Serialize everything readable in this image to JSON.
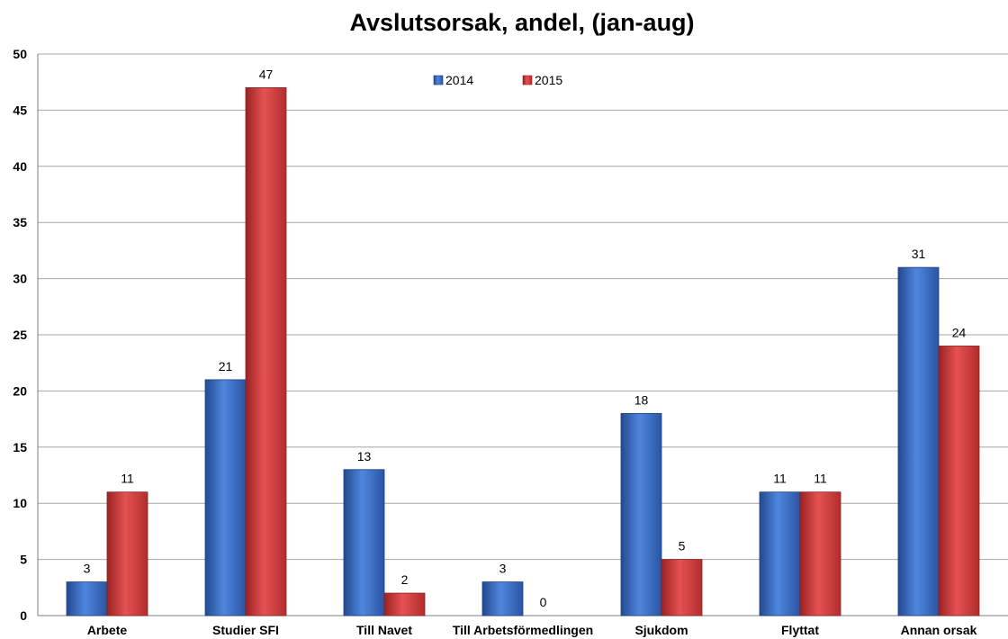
{
  "chart_data": {
    "type": "bar",
    "title": "Avslutsorsak, andel, (jan-aug)",
    "categories": [
      "Arbete",
      "Studier SFI",
      "Till Navet",
      "Till Arbetsförmedlingen",
      "Sjukdom",
      "Flyttat",
      "Annan orsak"
    ],
    "series": [
      {
        "name": "2014",
        "values": [
          3,
          21,
          13,
          3,
          18,
          11,
          31
        ]
      },
      {
        "name": "2015",
        "values": [
          11,
          47,
          2,
          0,
          5,
          11,
          24
        ]
      }
    ],
    "ylim": [
      0,
      50
    ],
    "yticks": [
      0,
      5,
      10,
      15,
      20,
      25,
      30,
      35,
      40,
      45,
      50
    ],
    "xlabel": "",
    "ylabel": "",
    "grid": true,
    "legend_position": "top-center",
    "data_labels": true,
    "colors": {
      "2014": "#3c6fc2",
      "2015": "#d23a3a"
    }
  }
}
